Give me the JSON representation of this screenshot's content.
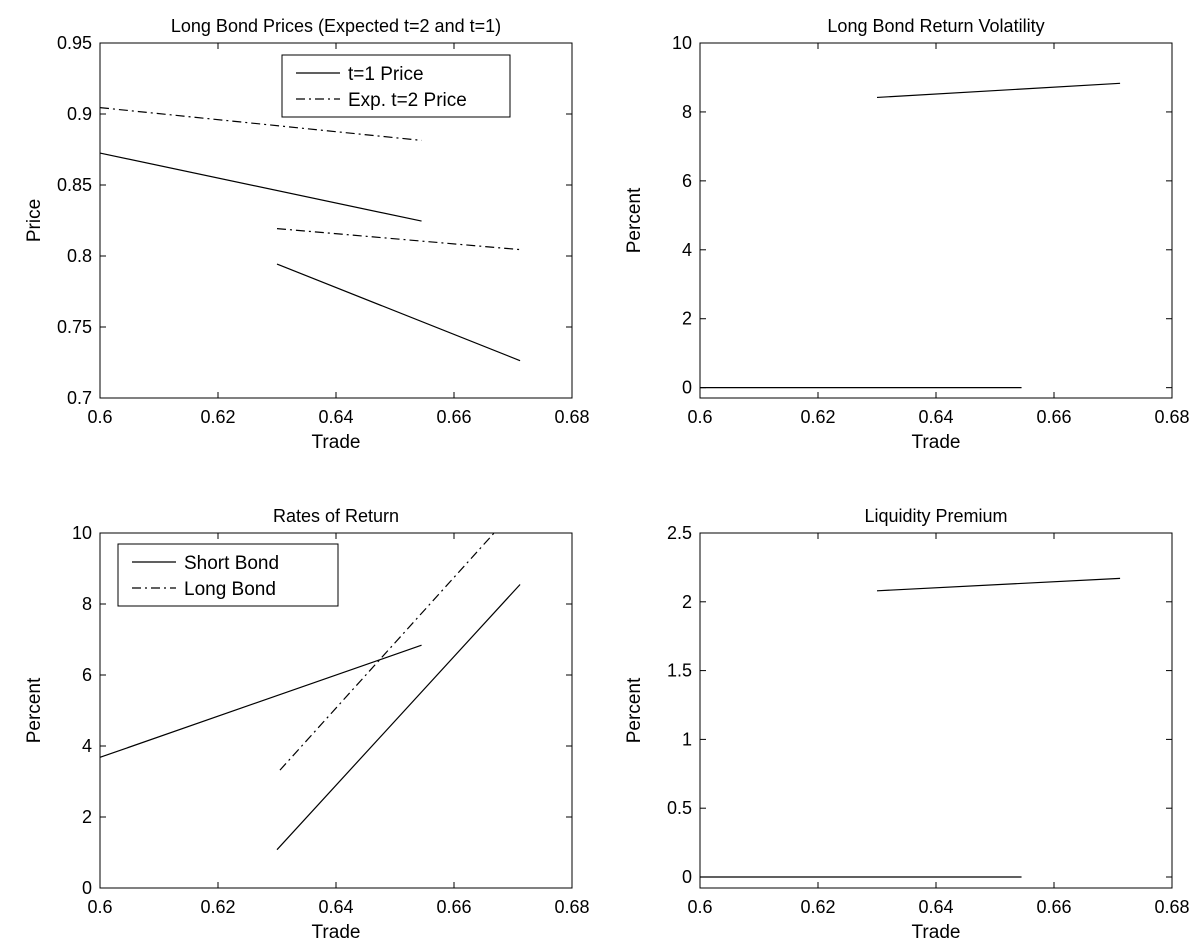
{
  "colors": {
    "line": "#000000",
    "background": "#ffffff"
  },
  "chart_data": [
    {
      "type": "line",
      "title": "Long Bond Prices (Expected t=2 and t=1)",
      "xlabel": "Trade",
      "ylabel": "Price",
      "xlim": [
        0.6,
        0.68
      ],
      "ylim": [
        0.7,
        0.95
      ],
      "xticks": [
        0.6,
        0.62,
        0.64,
        0.66,
        0.68
      ],
      "yticks": [
        0.7,
        0.75,
        0.8,
        0.85,
        0.9,
        0.95
      ],
      "xtick_labels": [
        "0.6",
        "0.62",
        "0.64",
        "0.66",
        "0.68"
      ],
      "ytick_labels": [
        "0.7",
        "0.75",
        "0.8",
        "0.85",
        "0.9",
        "0.95"
      ],
      "grid": false,
      "legend": {
        "placement": "top-right",
        "entries": [
          "t=1 Price",
          "Exp. t=2 Price"
        ]
      },
      "series": [
        {
          "name": "t=1 Price",
          "style": "solid",
          "segments": [
            [
              [
                0.6,
                0.8725
              ],
              [
                0.6545,
                0.8246
              ]
            ],
            [
              [
                0.63,
                0.7943
              ],
              [
                0.6712,
                0.7263
              ]
            ]
          ]
        },
        {
          "name": "Exp. t=2 Price",
          "style": "dashdot",
          "segments": [
            [
              [
                0.6,
                0.9045
              ],
              [
                0.6545,
                0.8814
              ]
            ],
            [
              [
                0.63,
                0.8193
              ],
              [
                0.6712,
                0.8045
              ]
            ]
          ]
        }
      ]
    },
    {
      "type": "line",
      "title": "Long Bond Return Volatility",
      "xlabel": "Trade",
      "ylabel": "Percent",
      "xlim": [
        0.6,
        0.68
      ],
      "ylim": [
        -0.3,
        10
      ],
      "xticks": [
        0.6,
        0.62,
        0.64,
        0.66,
        0.68
      ],
      "yticks": [
        0,
        2,
        4,
        6,
        8,
        10
      ],
      "xtick_labels": [
        "0.6",
        "0.62",
        "0.64",
        "0.66",
        "0.68"
      ],
      "ytick_labels": [
        "0",
        "2",
        "4",
        "6",
        "8",
        "10"
      ],
      "grid": false,
      "series": [
        {
          "style": "solid",
          "segments": [
            [
              [
                0.6,
                0.0
              ],
              [
                0.6545,
                0.0
              ]
            ],
            [
              [
                0.63,
                8.42
              ],
              [
                0.6712,
                8.83
              ]
            ]
          ]
        }
      ]
    },
    {
      "type": "line",
      "title": "Rates of Return",
      "xlabel": "Trade",
      "ylabel": "Percent",
      "xlim": [
        0.6,
        0.68
      ],
      "ylim": [
        0,
        10
      ],
      "xticks": [
        0.6,
        0.62,
        0.64,
        0.66,
        0.68
      ],
      "yticks": [
        0,
        2,
        4,
        6,
        8,
        10
      ],
      "xtick_labels": [
        "0.6",
        "0.62",
        "0.64",
        "0.66",
        "0.68"
      ],
      "ytick_labels": [
        "0",
        "2",
        "4",
        "6",
        "8",
        "10"
      ],
      "grid": false,
      "legend": {
        "placement": "top-left",
        "entries": [
          "Short Bond",
          "Long Bond"
        ]
      },
      "series": [
        {
          "name": "Short Bond",
          "style": "solid",
          "segments": [
            [
              [
                0.6,
                3.68
              ],
              [
                0.6545,
                6.84
              ]
            ],
            [
              [
                0.63,
                1.08
              ],
              [
                0.6712,
                8.55
              ]
            ]
          ]
        },
        {
          "name": "Long Bond",
          "style": "dashdot",
          "segments": [
            [
              [
                0.6305,
                3.32
              ],
              [
                0.6668,
                10.0
              ]
            ]
          ]
        }
      ]
    },
    {
      "type": "line",
      "title": "Liquidity Premium",
      "xlabel": "Trade",
      "ylabel": "Percent",
      "xlim": [
        0.6,
        0.68
      ],
      "ylim": [
        -0.08,
        2.5
      ],
      "xticks": [
        0.6,
        0.62,
        0.64,
        0.66,
        0.68
      ],
      "yticks": [
        0,
        0.5,
        1,
        1.5,
        2,
        2.5
      ],
      "xtick_labels": [
        "0.6",
        "0.62",
        "0.64",
        "0.66",
        "0.68"
      ],
      "ytick_labels": [
        "0",
        "0.5",
        "1",
        "1.5",
        "2",
        "2.5"
      ],
      "grid": false,
      "series": [
        {
          "style": "solid",
          "segments": [
            [
              [
                0.6,
                0.0
              ],
              [
                0.6545,
                0.0
              ]
            ],
            [
              [
                0.63,
                2.08
              ],
              [
                0.6712,
                2.17
              ]
            ]
          ]
        }
      ]
    }
  ]
}
